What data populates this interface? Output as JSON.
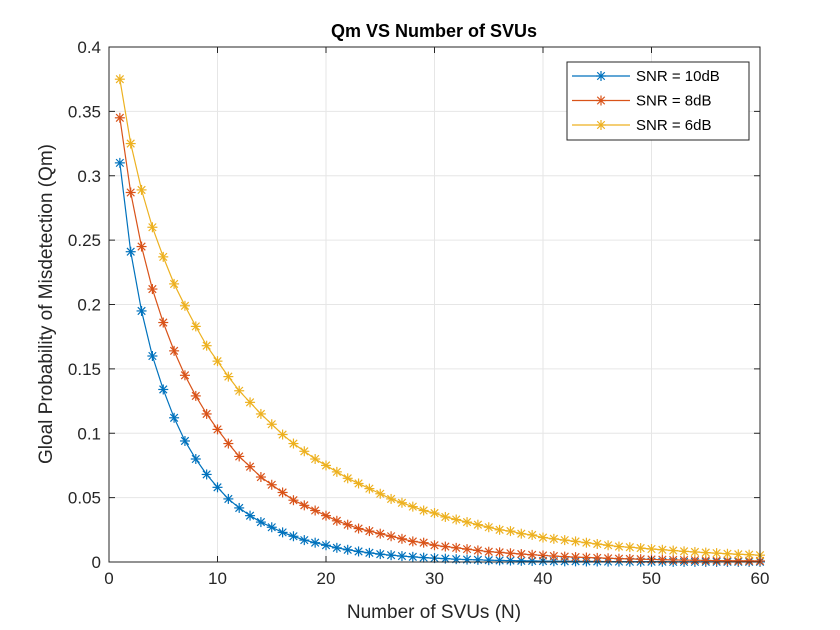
{
  "chart_data": {
    "type": "line",
    "title": "Qm VS Number of SVUs",
    "xlabel": "Number of SVUs (N)",
    "ylabel": "Gloal Probability of Misdetection (Qm)",
    "xlim": [
      0,
      60
    ],
    "ylim": [
      0,
      0.4
    ],
    "xticks": [
      0,
      10,
      20,
      30,
      40,
      50,
      60
    ],
    "yticks": [
      0,
      0.05,
      0.1,
      0.15,
      0.2,
      0.25,
      0.3,
      0.35,
      0.4
    ],
    "xtick_labels": [
      "0",
      "10",
      "20",
      "30",
      "40",
      "50",
      "60"
    ],
    "ytick_labels": [
      "0",
      "0.05",
      "0.1",
      "0.15",
      "0.2",
      "0.25",
      "0.3",
      "0.35",
      "0.4"
    ],
    "grid": true,
    "legend_position": "top-right",
    "marker": "asterisk",
    "x": [
      1,
      2,
      3,
      4,
      5,
      6,
      7,
      8,
      9,
      10,
      11,
      12,
      13,
      14,
      15,
      16,
      17,
      18,
      19,
      20,
      21,
      22,
      23,
      24,
      25,
      26,
      27,
      28,
      29,
      30,
      31,
      32,
      33,
      34,
      35,
      36,
      37,
      38,
      39,
      40,
      41,
      42,
      43,
      44,
      45,
      46,
      47,
      48,
      49,
      50,
      51,
      52,
      53,
      54,
      55,
      56,
      57,
      58,
      59,
      60
    ],
    "series": [
      {
        "name": "SNR = 10dB",
        "color": "#0072BD",
        "values": [
          0.31,
          0.241,
          0.195,
          0.16,
          0.134,
          0.112,
          0.094,
          0.08,
          0.068,
          0.058,
          0.049,
          0.042,
          0.036,
          0.031,
          0.027,
          0.023,
          0.02,
          0.017,
          0.015,
          0.013,
          0.011,
          0.0095,
          0.0082,
          0.0071,
          0.0061,
          0.0053,
          0.0046,
          0.004,
          0.0034,
          0.003,
          0.0026,
          0.0022,
          0.0019,
          0.0017,
          0.0014,
          0.0012,
          0.0011,
          0.0009,
          0.0008,
          0.0007,
          0.0006,
          0.0005,
          0.0005,
          0.0004,
          0.0004,
          0.0003,
          0.0003,
          0.0002,
          0.0002,
          0.0002,
          0.0002,
          0.0001,
          0.0001,
          0.0001,
          0.0001,
          0.0001,
          0.0001,
          0.0001,
          0.0001,
          0.0001
        ]
      },
      {
        "name": "SNR = 8dB",
        "color": "#D95319",
        "values": [
          0.345,
          0.287,
          0.245,
          0.212,
          0.186,
          0.164,
          0.145,
          0.129,
          0.115,
          0.103,
          0.092,
          0.082,
          0.074,
          0.066,
          0.06,
          0.054,
          0.048,
          0.044,
          0.04,
          0.036,
          0.032,
          0.029,
          0.026,
          0.024,
          0.022,
          0.02,
          0.018,
          0.016,
          0.015,
          0.013,
          0.012,
          0.011,
          0.01,
          0.009,
          0.008,
          0.0075,
          0.0068,
          0.0062,
          0.0056,
          0.0051,
          0.0046,
          0.0042,
          0.0038,
          0.0035,
          0.0032,
          0.0029,
          0.0026,
          0.0024,
          0.0022,
          0.002,
          0.0018,
          0.0016,
          0.0015,
          0.0014,
          0.0012,
          0.0011,
          0.001,
          0.0009,
          0.0009,
          0.0008
        ]
      },
      {
        "name": "SNR = 6dB",
        "color": "#EDB120",
        "values": [
          0.375,
          0.325,
          0.289,
          0.26,
          0.237,
          0.216,
          0.199,
          0.183,
          0.168,
          0.156,
          0.144,
          0.133,
          0.124,
          0.115,
          0.107,
          0.099,
          0.092,
          0.086,
          0.08,
          0.075,
          0.07,
          0.065,
          0.061,
          0.057,
          0.053,
          0.049,
          0.046,
          0.043,
          0.04,
          0.038,
          0.035,
          0.033,
          0.031,
          0.029,
          0.027,
          0.025,
          0.024,
          0.022,
          0.021,
          0.019,
          0.018,
          0.017,
          0.016,
          0.015,
          0.014,
          0.013,
          0.012,
          0.0115,
          0.0108,
          0.0101,
          0.0095,
          0.0089,
          0.0083,
          0.0078,
          0.0073,
          0.0069,
          0.0064,
          0.006,
          0.0057,
          0.0053
        ]
      }
    ]
  }
}
